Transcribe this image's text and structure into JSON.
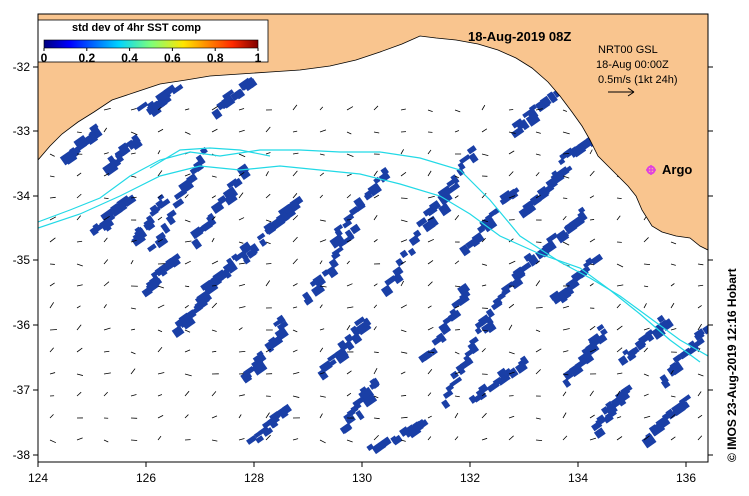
{
  "header": {
    "date_label": "18-Aug-2019 08Z",
    "product_label": "NRT00 GSL",
    "product_time": "18-Aug 00:00Z",
    "scale_label": "0.5m/s (1kt 24h)"
  },
  "colorbar": {
    "title": "std dev of 4hr SST comp",
    "ticks": [
      "0",
      "0.2",
      "0.4",
      "0.6",
      "0.8",
      "1"
    ]
  },
  "axes": {
    "x_ticks": [
      "124",
      "126",
      "128",
      "130",
      "132",
      "134",
      "136"
    ],
    "y_ticks": [
      "-32",
      "-33",
      "-34",
      "-35",
      "-36",
      "-37",
      "-38"
    ]
  },
  "marker": {
    "label": "Argo"
  },
  "credit": "© IMOS 23-Aug-2019 12:16 Hobart",
  "colors": {
    "land": "#f9c58f",
    "ocean": "#ffffff",
    "sst_patch": "#1a3fa6",
    "track": "#22d9e6",
    "argo": "#e040e0"
  }
}
